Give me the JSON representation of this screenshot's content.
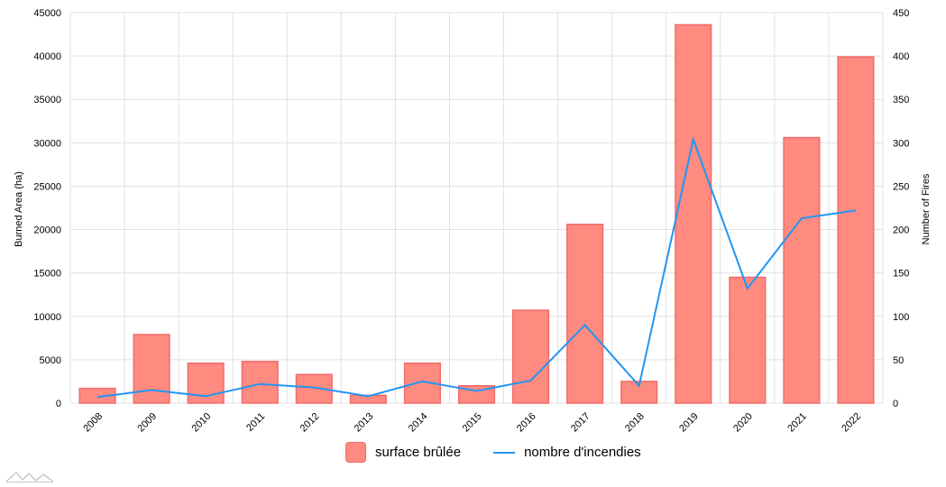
{
  "chart_data": {
    "type": "bar",
    "categories": [
      "2008",
      "2009",
      "2010",
      "2011",
      "2012",
      "2013",
      "2014",
      "2015",
      "2016",
      "2017",
      "2018",
      "2019",
      "2020",
      "2021",
      "2022"
    ],
    "series": [
      {
        "name": "surface brûlée",
        "type": "bar",
        "axis": "left",
        "values": [
          1700,
          7900,
          4600,
          4800,
          3300,
          900,
          4600,
          2000,
          10700,
          20600,
          2500,
          43600,
          14500,
          30600,
          39900
        ]
      },
      {
        "name": "nombre d'incendies",
        "type": "line",
        "axis": "right",
        "values": [
          7,
          15,
          8,
          22,
          18,
          8,
          25,
          14,
          26,
          90,
          20,
          304,
          132,
          213,
          222
        ]
      }
    ],
    "ylabel": "Burned Area (ha)",
    "y2label": "Number of Fires",
    "ylim": [
      0,
      45000
    ],
    "y2lim": [
      0,
      450
    ],
    "yticks": [
      0,
      5000,
      10000,
      15000,
      20000,
      25000,
      30000,
      35000,
      40000,
      45000
    ],
    "y2ticks": [
      0,
      50,
      100,
      150,
      200,
      250,
      300,
      350,
      400,
      450
    ],
    "grid": true,
    "legend_position": "bottom",
    "colors": {
      "bar_fill": "#ff8a80",
      "bar_stroke": "#f26b6b",
      "line": "#2196f3",
      "grid": "#e0e0e0"
    }
  }
}
